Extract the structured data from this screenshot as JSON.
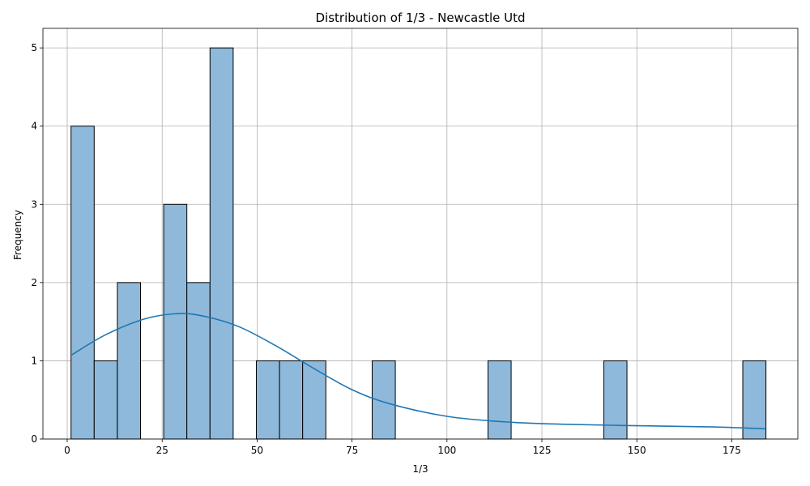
{
  "chart_data": {
    "type": "bar",
    "subtype": "histogram-with-kde",
    "title": "Distribution of 1/3 - Newcastle Utd",
    "xlabel": "1/3",
    "ylabel": "Frequency",
    "xlim": [
      -6.4,
      192.4
    ],
    "ylim": [
      0,
      5.25
    ],
    "x_ticks": [
      0,
      25,
      50,
      75,
      100,
      125,
      150,
      175
    ],
    "y_ticks": [
      0,
      1,
      2,
      3,
      4,
      5
    ],
    "grid": true,
    "bar_color": "#8fb9da",
    "bar_edge_color": "#000000",
    "kde_color": "#1f77b4",
    "bins": [
      {
        "start": 1.0,
        "end": 7.1,
        "count": 4
      },
      {
        "start": 7.1,
        "end": 13.2,
        "count": 1
      },
      {
        "start": 13.2,
        "end": 19.3,
        "count": 2
      },
      {
        "start": 19.3,
        "end": 25.4,
        "count": 0
      },
      {
        "start": 25.4,
        "end": 31.5,
        "count": 3
      },
      {
        "start": 31.5,
        "end": 37.6,
        "count": 2
      },
      {
        "start": 37.6,
        "end": 43.7,
        "count": 5
      },
      {
        "start": 43.7,
        "end": 49.8,
        "count": 0
      },
      {
        "start": 49.8,
        "end": 55.9,
        "count": 1
      },
      {
        "start": 55.9,
        "end": 62.0,
        "count": 1
      },
      {
        "start": 62.0,
        "end": 68.1,
        "count": 1
      },
      {
        "start": 68.1,
        "end": 74.2,
        "count": 0
      },
      {
        "start": 74.2,
        "end": 80.3,
        "count": 0
      },
      {
        "start": 80.3,
        "end": 86.4,
        "count": 1
      },
      {
        "start": 86.4,
        "end": 92.5,
        "count": 0
      },
      {
        "start": 92.5,
        "end": 98.6,
        "count": 0
      },
      {
        "start": 98.6,
        "end": 104.7,
        "count": 0
      },
      {
        "start": 104.7,
        "end": 110.8,
        "count": 0
      },
      {
        "start": 110.8,
        "end": 116.9,
        "count": 1
      },
      {
        "start": 116.9,
        "end": 123.0,
        "count": 0
      },
      {
        "start": 123.0,
        "end": 129.1,
        "count": 0
      },
      {
        "start": 129.1,
        "end": 135.2,
        "count": 0
      },
      {
        "start": 135.2,
        "end": 141.3,
        "count": 0
      },
      {
        "start": 141.3,
        "end": 147.4,
        "count": 1
      },
      {
        "start": 147.4,
        "end": 153.5,
        "count": 0
      },
      {
        "start": 153.5,
        "end": 159.6,
        "count": 0
      },
      {
        "start": 159.6,
        "end": 165.7,
        "count": 0
      },
      {
        "start": 165.7,
        "end": 171.8,
        "count": 0
      },
      {
        "start": 171.8,
        "end": 177.9,
        "count": 0
      },
      {
        "start": 177.9,
        "end": 184.0,
        "count": 1
      }
    ],
    "kde": {
      "x": [
        1,
        10,
        20,
        28,
        35,
        45,
        55,
        65,
        75,
        85,
        100,
        115,
        130,
        150,
        170,
        184
      ],
      "y": [
        1.07,
        1.33,
        1.53,
        1.6,
        1.58,
        1.44,
        1.19,
        0.9,
        0.63,
        0.45,
        0.29,
        0.22,
        0.19,
        0.17,
        0.155,
        0.13
      ]
    }
  }
}
